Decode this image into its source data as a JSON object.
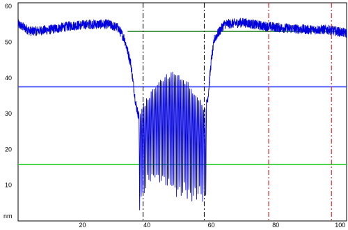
{
  "chart_data": {
    "type": "line",
    "title": "",
    "xlabel": "",
    "ylabel": "nm",
    "xlim": [
      0,
      102
    ],
    "ylim": [
      0,
      61
    ],
    "x_ticks": [
      20,
      40,
      60,
      80,
      100
    ],
    "y_ticks": [
      10,
      20,
      30,
      40,
      50,
      60
    ],
    "grid": false,
    "series": [
      {
        "color": "#0000dd",
        "profile": [
          {
            "x": 0,
            "y": 55
          },
          {
            "x": 4,
            "y": 53
          },
          {
            "x": 10,
            "y": 53.5
          },
          {
            "x": 16,
            "y": 54.5
          },
          {
            "x": 22,
            "y": 55
          },
          {
            "x": 28,
            "y": 55
          },
          {
            "x": 31,
            "y": 54
          },
          {
            "x": 33,
            "y": 51
          },
          {
            "x": 35,
            "y": 44
          },
          {
            "x": 36.5,
            "y": 33
          },
          {
            "x": 38,
            "y": 27
          },
          {
            "x": 41,
            "y": 31
          },
          {
            "x": 44,
            "y": 33
          },
          {
            "x": 48,
            "y": 36
          },
          {
            "x": 52,
            "y": 34
          },
          {
            "x": 55,
            "y": 31
          },
          {
            "x": 57.5,
            "y": 28
          },
          {
            "x": 59,
            "y": 35
          },
          {
            "x": 60,
            "y": 45
          },
          {
            "x": 61,
            "y": 51
          },
          {
            "x": 64,
            "y": 55
          },
          {
            "x": 70,
            "y": 55.5
          },
          {
            "x": 76,
            "y": 54.5
          },
          {
            "x": 82,
            "y": 54
          },
          {
            "x": 90,
            "y": 53.5
          },
          {
            "x": 96,
            "y": 53.5
          },
          {
            "x": 102,
            "y": 52.5
          }
        ],
        "oscillation": {
          "x_start": 37.5,
          "x_end": 58.5,
          "cycles": 44,
          "peak_envelope": [
            {
              "x": 37.5,
              "y": 30
            },
            {
              "x": 41,
              "y": 35
            },
            {
              "x": 44,
              "y": 39
            },
            {
              "x": 48,
              "y": 41
            },
            {
              "x": 52,
              "y": 39
            },
            {
              "x": 55,
              "y": 35
            },
            {
              "x": 58.5,
              "y": 31
            }
          ],
          "trough_envelope": [
            {
              "x": 37.5,
              "y": 2
            },
            {
              "x": 40,
              "y": 11
            },
            {
              "x": 42,
              "y": 12
            },
            {
              "x": 48,
              "y": 8
            },
            {
              "x": 54,
              "y": 6
            },
            {
              "x": 57,
              "y": 7
            },
            {
              "x": 58.5,
              "y": 4
            }
          ]
        },
        "noise_amplitude": 1.1
      }
    ],
    "reference_lines": [
      {
        "orientation": "horizontal",
        "y": 53,
        "x_from": 34,
        "x_to": 102,
        "color": "#2e8b2e",
        "style": "solid"
      },
      {
        "orientation": "horizontal",
        "y": 37.5,
        "x_from": 0,
        "x_to": 102,
        "color": "#3c46ff",
        "style": "solid"
      },
      {
        "orientation": "horizontal",
        "y": 15.8,
        "x_from": 0,
        "x_to": 102,
        "color": "#22cc22",
        "style": "solid"
      },
      {
        "orientation": "vertical",
        "x": 38.8,
        "color": "#000000",
        "style": "dashdot"
      },
      {
        "orientation": "vertical",
        "x": 57.8,
        "color": "#000000",
        "style": "dashdot"
      },
      {
        "orientation": "vertical",
        "x": 77.8,
        "color": "#e0191e",
        "style": "dashdot"
      },
      {
        "orientation": "vertical",
        "x": 97.3,
        "color": "#e0191e",
        "style": "dashdot"
      }
    ]
  }
}
